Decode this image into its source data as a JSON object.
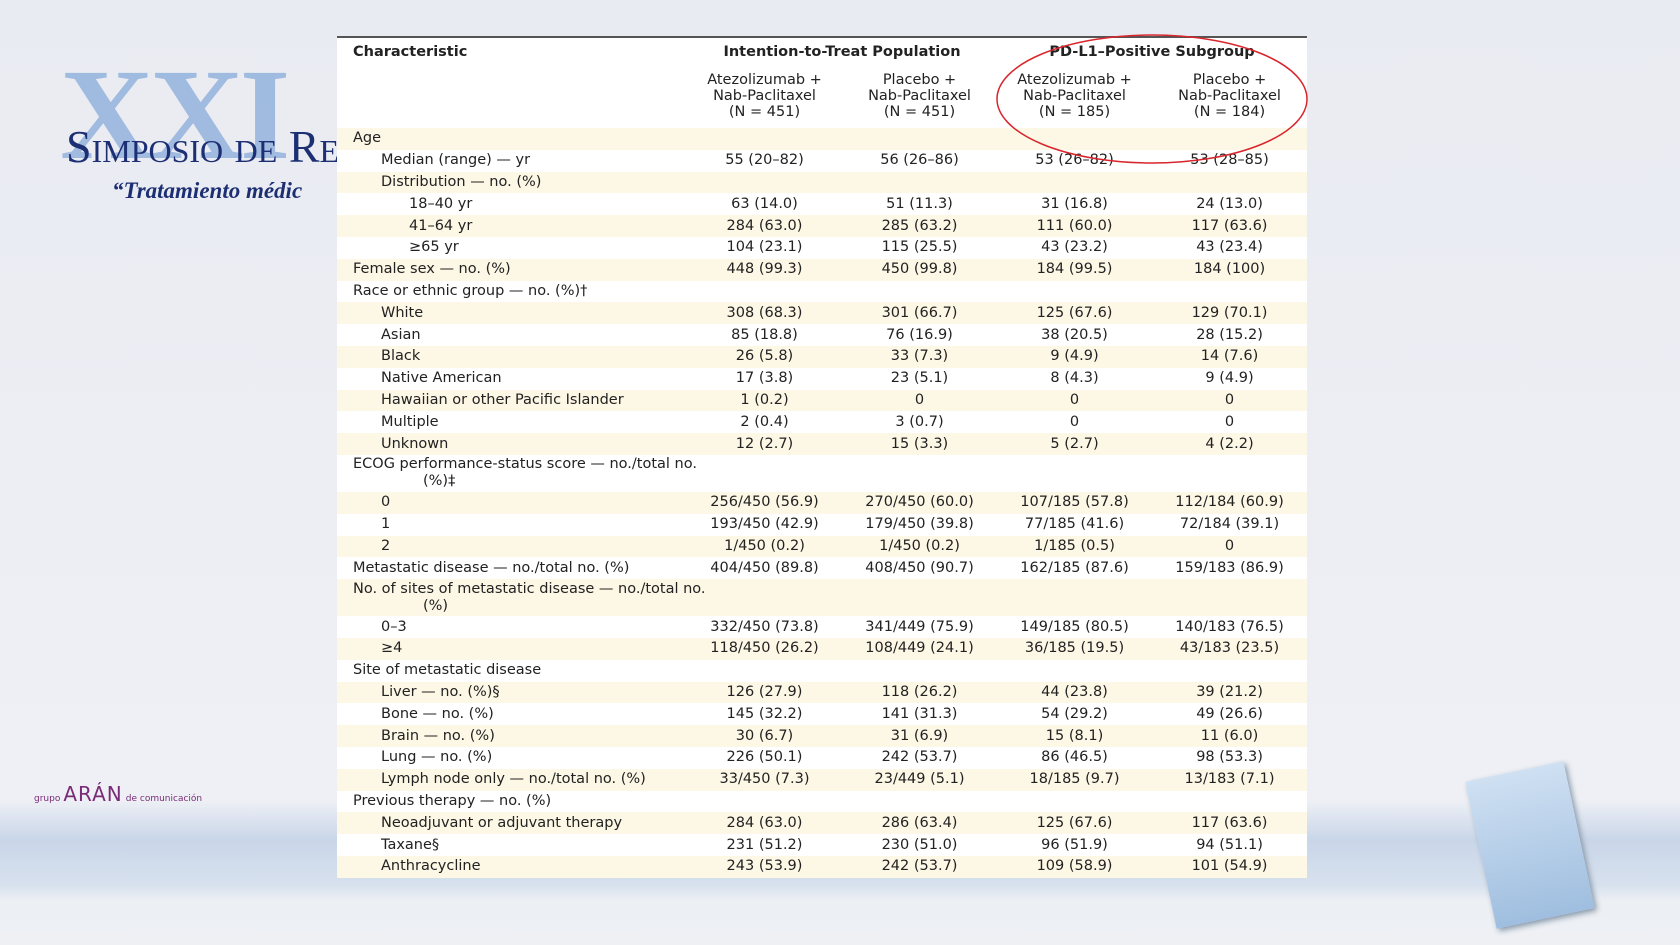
{
  "slide": {
    "logo": "XXI",
    "title": "Simposio de Re",
    "subtitle": "“Tratamiento médic",
    "publisher": {
      "prefix": "grupo",
      "name": "ARÁN",
      "suffix": "de comunicación"
    }
  },
  "table": {
    "header": {
      "characteristic": "Characteristic",
      "groups": [
        "Intention-to-Treat Population",
        "PD-L1–Positive Subgroup"
      ],
      "columns": [
        [
          "Atezolizumab +",
          "Nab-Paclitaxel",
          "(N = 451)"
        ],
        [
          "Placebo +",
          "Nab-Paclitaxel",
          "(N = 451)"
        ],
        [
          "Atezolizumab +",
          "Nab-Paclitaxel",
          "(N = 185)"
        ],
        [
          "Placebo +",
          "Nab-Paclitaxel",
          "(N = 184)"
        ]
      ]
    },
    "rows": [
      {
        "label": "Age",
        "rows": [
          {
            "label": "Median (range) — yr",
            "cells": [
              "55 (20–82)",
              "56 (26–86)",
              "53 (26–82)",
              "53 (28–85)"
            ]
          },
          {
            "label": "Distribution — no. (%)",
            "rows": [
              {
                "label": "18–40 yr",
                "cells": [
                  "63 (14.0)",
                  "51 (11.3)",
                  "31 (16.8)",
                  "24 (13.0)"
                ]
              },
              {
                "label": "41–64 yr",
                "cells": [
                  "284 (63.0)",
                  "285 (63.2)",
                  "111 (60.0)",
                  "117 (63.6)"
                ]
              },
              {
                "label": "≥65 yr",
                "cells": [
                  "104 (23.1)",
                  "115 (25.5)",
                  "43 (23.2)",
                  "43 (23.4)"
                ]
              }
            ]
          }
        ]
      },
      {
        "label": "Female sex — no. (%)",
        "cells": [
          "448 (99.3)",
          "450 (99.8)",
          "184 (99.5)",
          "184 (100)"
        ]
      },
      {
        "label": "Race or ethnic group — no. (%)†",
        "rows": [
          {
            "label": "White",
            "cells": [
              "308 (68.3)",
              "301 (66.7)",
              "125 (67.6)",
              "129 (70.1)"
            ]
          },
          {
            "label": "Asian",
            "cells": [
              "85 (18.8)",
              "76 (16.9)",
              "38 (20.5)",
              "28 (15.2)"
            ]
          },
          {
            "label": "Black",
            "cells": [
              "26 (5.8)",
              "33 (7.3)",
              "9 (4.9)",
              "14 (7.6)"
            ]
          },
          {
            "label": "Native American",
            "cells": [
              "17 (3.8)",
              "23 (5.1)",
              "8 (4.3)",
              "9 (4.9)"
            ]
          },
          {
            "label": "Hawaiian or other Pacific Islander",
            "cells": [
              "1 (0.2)",
              "0",
              "0",
              "0"
            ]
          },
          {
            "label": "Multiple",
            "cells": [
              "2 (0.4)",
              "3 (0.7)",
              "0",
              "0"
            ]
          },
          {
            "label": "Unknown",
            "cells": [
              "12 (2.7)",
              "15 (3.3)",
              "5 (2.7)",
              "4 (2.2)"
            ]
          }
        ]
      },
      {
        "label": "ECOG performance-status score — no./total no. (%)‡",
        "rows": [
          {
            "label": "0",
            "cells": [
              "256/450 (56.9)",
              "270/450 (60.0)",
              "107/185 (57.8)",
              "112/184 (60.9)"
            ]
          },
          {
            "label": "1",
            "cells": [
              "193/450 (42.9)",
              "179/450 (39.8)",
              "77/185 (41.6)",
              "72/184 (39.1)"
            ]
          },
          {
            "label": "2",
            "cells": [
              "1/450 (0.2)",
              "1/450 (0.2)",
              "1/185 (0.5)",
              "0"
            ]
          }
        ]
      },
      {
        "label": "Metastatic disease — no./total no. (%)",
        "cells": [
          "404/450 (89.8)",
          "408/450 (90.7)",
          "162/185 (87.6)",
          "159/183 (86.9)"
        ]
      },
      {
        "label": "No. of sites of metastatic disease — no./total no. (%)",
        "rows": [
          {
            "label": "0–3",
            "cells": [
              "332/450 (73.8)",
              "341/449 (75.9)",
              "149/185 (80.5)",
              "140/183 (76.5)"
            ]
          },
          {
            "label": "≥4",
            "cells": [
              "118/450 (26.2)",
              "108/449 (24.1)",
              "36/185 (19.5)",
              "43/183 (23.5)"
            ]
          }
        ]
      },
      {
        "label": "Site of metastatic disease",
        "rows": [
          {
            "label": "Liver — no. (%)§",
            "cells": [
              "126 (27.9)",
              "118 (26.2)",
              "44 (23.8)",
              "39 (21.2)"
            ]
          },
          {
            "label": "Bone — no. (%)",
            "cells": [
              "145 (32.2)",
              "141 (31.3)",
              "54 (29.2)",
              "49 (26.6)"
            ]
          },
          {
            "label": "Brain — no. (%)",
            "cells": [
              "30 (6.7)",
              "31 (6.9)",
              "15 (8.1)",
              "11 (6.0)"
            ]
          },
          {
            "label": "Lung — no. (%)",
            "cells": [
              "226 (50.1)",
              "242 (53.7)",
              "86 (46.5)",
              "98 (53.3)"
            ]
          },
          {
            "label": "Lymph node only — no./total no. (%)",
            "cells": [
              "33/450 (7.3)",
              "23/449 (5.1)",
              "18/185 (9.7)",
              "13/183 (7.1)"
            ]
          }
        ]
      },
      {
        "label": "Previous therapy — no. (%)",
        "rows": [
          {
            "label": "Neoadjuvant or adjuvant therapy",
            "cells": [
              "284 (63.0)",
              "286 (63.4)",
              "125 (67.6)",
              "117 (63.6)"
            ]
          },
          {
            "label": "Taxane§",
            "cells": [
              "231 (51.2)",
              "230 (51.0)",
              "96 (51.9)",
              "94 (51.1)"
            ]
          },
          {
            "label": "Anthracycline",
            "cells": [
              "243 (53.9)",
              "242 (53.7)",
              "109 (58.9)",
              "101 (54.9)"
            ]
          }
        ]
      }
    ]
  }
}
